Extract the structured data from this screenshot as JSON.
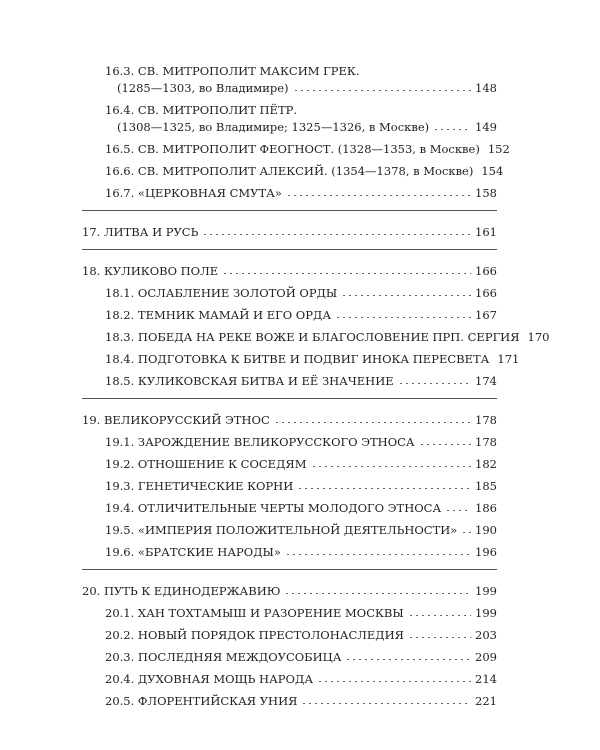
{
  "groups": [
    {
      "items": [
        {
          "number": "16.3.",
          "title": "СВ. МИТРОПОЛИТ МАКСИМ ГРЕК.",
          "subtitle": "(1285—1303, во Владимире)",
          "page": "148"
        },
        {
          "number": "16.4.",
          "title": "СВ. МИТРОПОЛИТ ПЁТР.",
          "subtitle": "(1308—1325, во Владимире; 1325—1326, в Москве)",
          "page": "149"
        },
        {
          "number": "16.5.",
          "title": "СВ. МИТРОПОЛИТ ФЕОГНОСТ. (1328—1353, в Москве)",
          "page": "152"
        },
        {
          "number": "16.6.",
          "title": "СВ. МИТРОПОЛИТ АЛЕКСИЙ. (1354—1378, в Москве)",
          "page": "154"
        },
        {
          "number": "16.7.",
          "title": "«ЦЕРКОВНАЯ СМУТА»",
          "page": "158"
        }
      ]
    },
    {
      "items": [
        {
          "number": "17.",
          "title": "ЛИТВА И РУСЬ",
          "page": "161"
        }
      ]
    },
    {
      "items": [
        {
          "number": "18.",
          "title": "КУЛИКОВО ПОЛЕ",
          "page": "166"
        },
        {
          "number": "18.1.",
          "title": "ОСЛАБЛЕНИЕ ЗОЛОТОЙ ОРДЫ",
          "page": "166"
        },
        {
          "number": "18.2.",
          "title": "ТЕМНИК МАМАЙ И ЕГО ОРДА",
          "page": "167"
        },
        {
          "number": "18.3.",
          "title": "ПОБЕДА НА РЕКЕ ВОЖЕ И БЛАГОСЛОВЕНИЕ ПРП. СЕРГИЯ",
          "page": "170"
        },
        {
          "number": "18.4.",
          "title": "ПОДГОТОВКА К БИТВЕ И ПОДВИГ ИНОКА ПЕРЕСВЕТА",
          "page": "171"
        },
        {
          "number": "18.5.",
          "title": "КУЛИКОВСКАЯ БИТВА И ЕЁ ЗНАЧЕНИЕ",
          "page": "174"
        }
      ]
    },
    {
      "items": [
        {
          "number": "19.",
          "title": "ВЕЛИКОРУССКИЙ ЭТНОС",
          "page": "178"
        },
        {
          "number": "19.1.",
          "title": "ЗАРОЖДЕНИЕ ВЕЛИКОРУССКОГО ЭТНОСА",
          "page": "178"
        },
        {
          "number": "19.2.",
          "title": "ОТНОШЕНИЕ К СОСЕДЯМ",
          "page": "182"
        },
        {
          "number": "19.3.",
          "title": "ГЕНЕТИЧЕСКИЕ КОРНИ",
          "page": "185"
        },
        {
          "number": "19.4.",
          "title": "ОТЛИЧИТЕЛЬНЫЕ ЧЕРТЫ МОЛОДОГО ЭТНОСА",
          "page": "186"
        },
        {
          "number": "19.5.",
          "title": "«ИМПЕРИЯ ПОЛОЖИТЕЛЬНОЙ ДЕЯТЕЛЬНОСТИ»",
          "page": "190"
        },
        {
          "number": "19.6.",
          "title": "«БРАТСКИЕ НАРОДЫ»",
          "page": "196"
        }
      ]
    },
    {
      "items": [
        {
          "number": "20.",
          "title": "ПУТЬ К ЕДИНОДЕРЖАВИЮ",
          "page": "199"
        },
        {
          "number": "20.1.",
          "title": "ХАН ТОХТАМЫШ И РАЗОРЕНИЕ МОСКВЫ",
          "page": "199"
        },
        {
          "number": "20.2.",
          "title": "НОВЫЙ ПОРЯДОК ПРЕСТОЛОНАСЛЕДИЯ",
          "page": "203"
        },
        {
          "number": "20.3.",
          "title": "ПОСЛЕДНЯЯ МЕЖДОУСОБИЦА",
          "page": "209"
        },
        {
          "number": "20.4.",
          "title": "ДУХОВНАЯ МОЩЬ НАРОДА",
          "page": "214"
        },
        {
          "number": "20.5.",
          "title": "ФЛОРЕНТИЙСКАЯ УНИЯ",
          "page": "221"
        }
      ]
    }
  ]
}
